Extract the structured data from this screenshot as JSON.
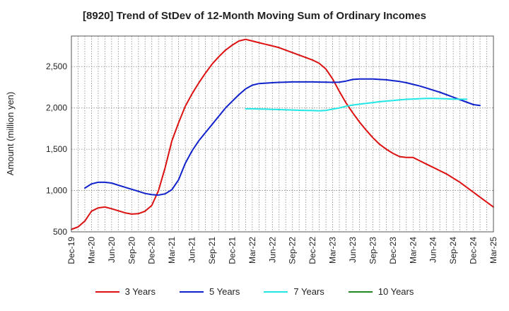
{
  "chart_data": {
    "type": "line",
    "title": "[8920]  Trend of StDev of 12-Month Moving Sum of Ordinary Incomes",
    "ylabel": "Amount (million yen)",
    "xlabel": "",
    "ylim": [
      500,
      2870
    ],
    "yticks": [
      500,
      1000,
      1500,
      2000,
      2500
    ],
    "ytick_labels": [
      "500",
      "1,000",
      "1,500",
      "2,000",
      "2,500"
    ],
    "xtick_labels": [
      "Dec-19",
      "Mar-20",
      "Jun-20",
      "Sep-20",
      "Dec-20",
      "Mar-21",
      "Jun-21",
      "Sep-21",
      "Dec-21",
      "Mar-22",
      "Jun-22",
      "Sep-22",
      "Dec-22",
      "Mar-23",
      "Jun-23",
      "Sep-23",
      "Dec-23",
      "Mar-24",
      "Jun-24",
      "Sep-24",
      "Dec-24",
      "Mar-25"
    ],
    "grid": true,
    "legend_position": "bottom",
    "series": [
      {
        "name": "3 Years",
        "color": "#dd1111",
        "start_month_index": 0,
        "values": [
          530,
          560,
          630,
          750,
          790,
          800,
          780,
          755,
          730,
          715,
          720,
          750,
          820,
          1000,
          1280,
          1600,
          1820,
          2020,
          2170,
          2300,
          2420,
          2530,
          2620,
          2700,
          2760,
          2810,
          2830,
          2810,
          2790,
          2770,
          2750,
          2730,
          2700,
          2670,
          2640,
          2610,
          2580,
          2540,
          2470,
          2350,
          2200,
          2060,
          1940,
          1830,
          1730,
          1640,
          1560,
          1500,
          1450,
          1410,
          1400,
          1400,
          1360,
          1320,
          1280,
          1240,
          1200,
          1150,
          1100,
          1040,
          980,
          920,
          860,
          800
        ]
      },
      {
        "name": "5 Years",
        "color": "#1122cc",
        "start_month_index": 2,
        "values": [
          1030,
          1080,
          1100,
          1100,
          1090,
          1065,
          1040,
          1015,
          990,
          965,
          950,
          945,
          960,
          1010,
          1130,
          1330,
          1480,
          1600,
          1700,
          1800,
          1900,
          2000,
          2080,
          2160,
          2230,
          2275,
          2295,
          2300,
          2305,
          2310,
          2312,
          2315,
          2315,
          2315,
          2315,
          2313,
          2312,
          2310,
          2312,
          2325,
          2345,
          2350,
          2350,
          2350,
          2345,
          2340,
          2330,
          2320,
          2305,
          2285,
          2265,
          2240,
          2215,
          2190,
          2160,
          2130,
          2100,
          2070,
          2040,
          2030
        ]
      },
      {
        "name": "7 Years",
        "color": "#22e6e6",
        "start_month_index": 26,
        "values": [
          1990,
          1990,
          1987,
          1985,
          1983,
          1980,
          1977,
          1975,
          1972,
          1970,
          1968,
          1966,
          1970,
          1985,
          2000,
          2020,
          2035,
          2045,
          2055,
          2065,
          2075,
          2083,
          2090,
          2098,
          2104,
          2108,
          2112,
          2115,
          2115,
          2113,
          2110,
          2107,
          2105,
          2105
        ]
      },
      {
        "name": "10 Years",
        "color": "#228822",
        "start_month_index": 0,
        "values": []
      }
    ]
  }
}
